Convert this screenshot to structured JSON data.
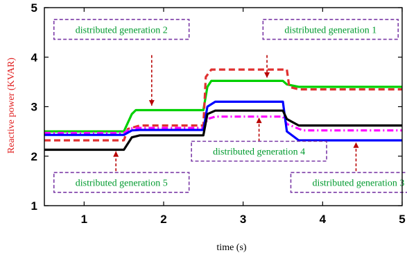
{
  "chart_data": {
    "type": "line",
    "title": "",
    "xlabel": "time (s)",
    "ylabel": "Reactive power (KVAR)",
    "xlim": [
      0.5,
      5
    ],
    "ylim": [
      1,
      5
    ],
    "xticks": [
      "1",
      "2",
      "3",
      "4",
      "5"
    ],
    "yticks": [
      "1",
      "2",
      "3",
      "4",
      "5"
    ],
    "grid": false,
    "legend": "none",
    "series": [
      {
        "color": "#00d000",
        "dash": "solid",
        "x": [
          0.5,
          1.5,
          1.6,
          1.65,
          2.5,
          2.55,
          2.6,
          3.5,
          3.55,
          3.7,
          5
        ],
        "y": [
          2.5,
          2.5,
          2.85,
          2.93,
          2.93,
          3.4,
          3.52,
          3.52,
          3.45,
          3.4,
          3.4
        ]
      },
      {
        "color": "#e03030",
        "dash": "dashed",
        "x": [
          0.5,
          1.5,
          1.55,
          1.7,
          2.5,
          2.53,
          2.6,
          3.55,
          3.58,
          3.7,
          5
        ],
        "y": [
          2.32,
          2.32,
          2.55,
          2.62,
          2.62,
          3.6,
          3.75,
          3.75,
          3.4,
          3.35,
          3.35
        ]
      },
      {
        "color": "#ff00ff",
        "dash": "dashdot",
        "x": [
          0.5,
          1.5,
          1.6,
          1.7,
          2.5,
          2.55,
          2.65,
          3.5,
          3.55,
          3.75,
          5
        ],
        "y": [
          2.47,
          2.47,
          2.56,
          2.57,
          2.57,
          2.75,
          2.8,
          2.8,
          2.65,
          2.52,
          2.52
        ]
      },
      {
        "color": "#0000ff",
        "dash": "solid",
        "x": [
          0.5,
          1.5,
          1.6,
          1.7,
          2.5,
          2.55,
          2.65,
          3.5,
          3.55,
          3.7,
          5
        ],
        "y": [
          2.43,
          2.43,
          2.52,
          2.53,
          2.53,
          3.0,
          3.1,
          3.1,
          2.5,
          2.32,
          2.32
        ]
      },
      {
        "color": "#000000",
        "dash": "solid",
        "x": [
          0.5,
          1.5,
          1.6,
          1.7,
          2.5,
          2.55,
          2.65,
          3.5,
          3.55,
          3.7,
          5
        ],
        "y": [
          2.13,
          2.13,
          2.38,
          2.42,
          2.42,
          2.85,
          2.92,
          2.92,
          2.75,
          2.62,
          2.62
        ]
      }
    ],
    "annotations": [
      {
        "text": "distributed generation 2",
        "box_x": 0.62,
        "box_y": 4.36,
        "box_w": 1.7,
        "box_h": 0.4,
        "arrow_from": [
          1.85,
          4.04
        ],
        "arrow_to": [
          1.85,
          3.02
        ],
        "label_x": 1.47,
        "label_y": 4.56
      },
      {
        "text": "distributed generation 1",
        "box_x": 3.25,
        "box_y": 4.36,
        "box_w": 1.7,
        "box_h": 0.4,
        "arrow_from": [
          3.3,
          4.04
        ],
        "arrow_to": [
          3.3,
          3.58
        ],
        "label_x": 4.1,
        "label_y": 4.56
      },
      {
        "text": "distributed generation 4",
        "box_x": 2.35,
        "box_y": 1.9,
        "box_w": 1.7,
        "box_h": 0.4,
        "arrow_from": [
          3.2,
          2.2
        ],
        "arrow_to": [
          3.2,
          2.78
        ],
        "label_x": 3.2,
        "label_y": 2.1
      },
      {
        "text": "distributed generation 5",
        "box_x": 0.62,
        "box_y": 1.27,
        "box_w": 1.7,
        "box_h": 0.4,
        "arrow_from": [
          1.4,
          1.6
        ],
        "arrow_to": [
          1.4,
          2.1
        ],
        "label_x": 1.47,
        "label_y": 1.47
      },
      {
        "text": "distributed generation 3",
        "box_x": 3.6,
        "box_y": 1.27,
        "box_w": 1.7,
        "box_h": 0.4,
        "arrow_from": [
          4.42,
          1.6
        ],
        "arrow_to": [
          4.42,
          2.28
        ],
        "label_x": 4.45,
        "label_y": 1.47
      }
    ]
  }
}
